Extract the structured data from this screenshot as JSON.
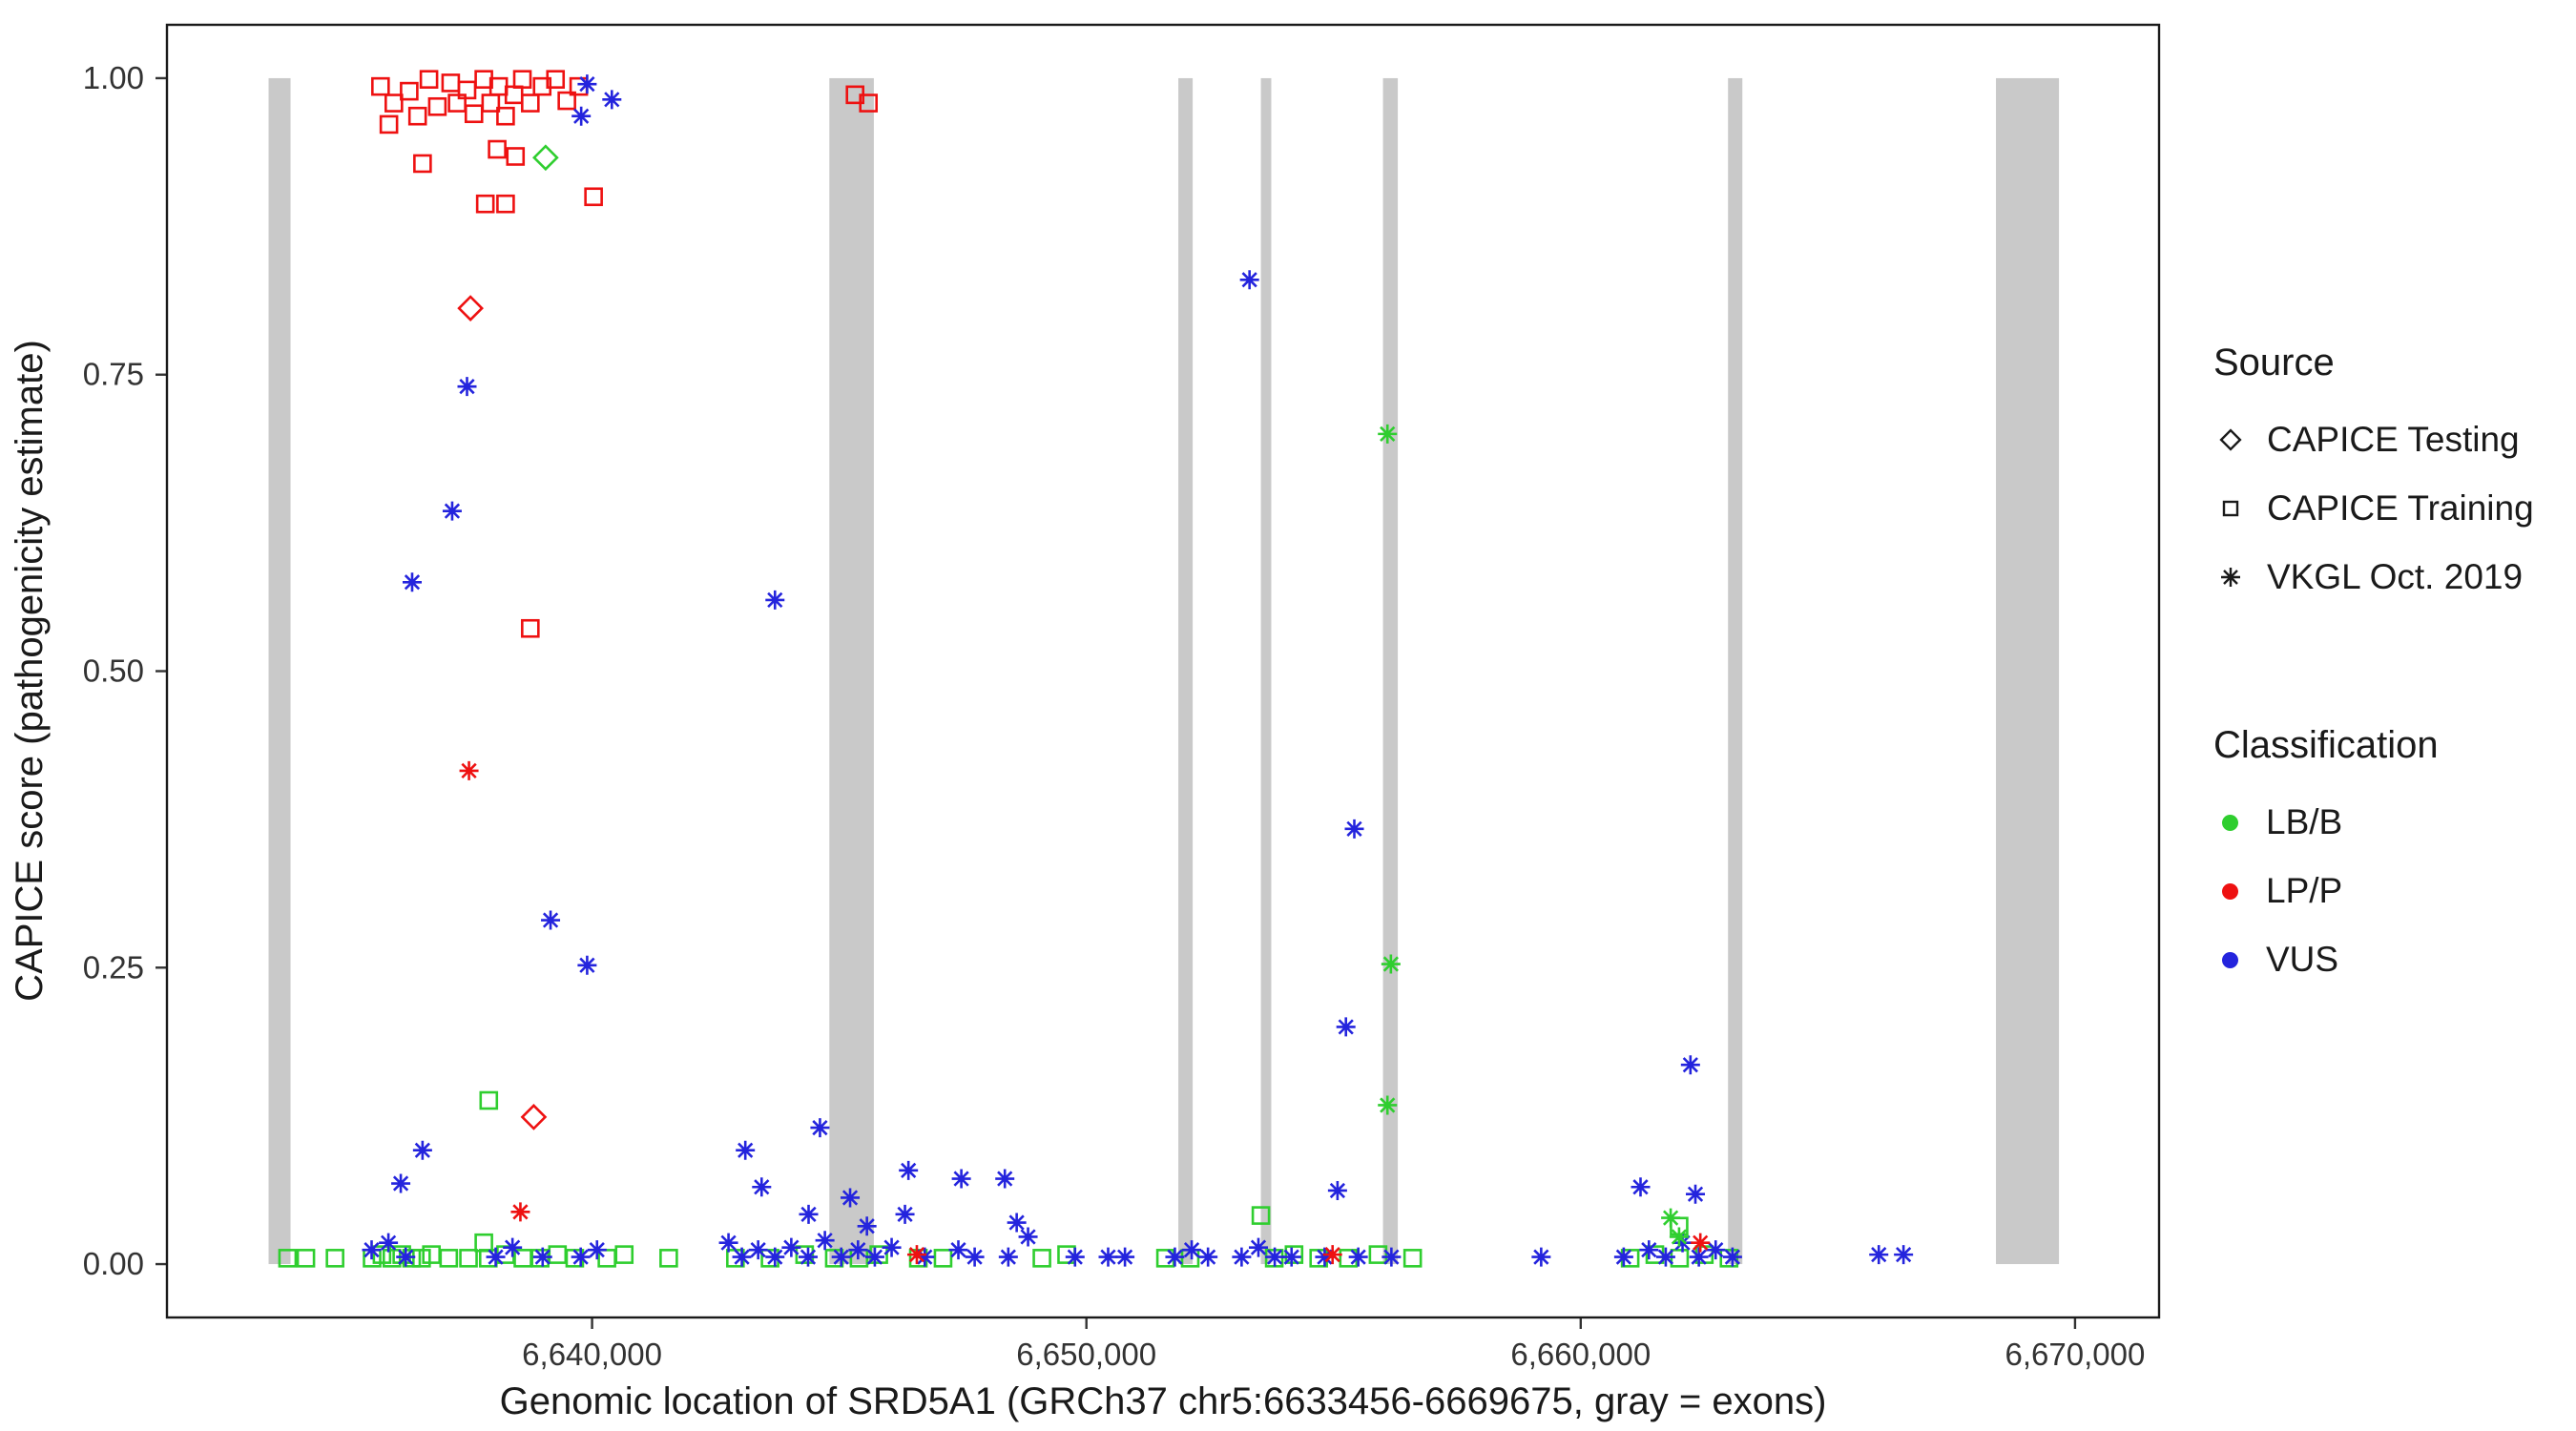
{
  "figure": {
    "background": "#ffffff"
  },
  "colors": {
    "LB/B": "#2fce2f",
    "LP/P": "#ee1111",
    "VUS": "#2424dd",
    "exon": "#c9c9c9",
    "text": "#1a1a1a"
  },
  "axes": {
    "x": {
      "title": "Genomic location of SRD5A1 (GRCh37 chr5:6633456-6669675, gray = exons)",
      "ticks": [
        6640000,
        6650000,
        6660000,
        6670000
      ],
      "tick_labels": [
        "6,640,000",
        "6,650,000",
        "6,660,000",
        "6,670,000"
      ]
    },
    "y": {
      "title": "CAPICE score (pathogenicity estimate)",
      "ticks": [
        0,
        0.25,
        0.5,
        0.75,
        1.0
      ],
      "tick_labels": [
        "0.00",
        "0.25",
        "0.50",
        "0.75",
        "1.00"
      ]
    }
  },
  "legend": {
    "source": {
      "title": "Source",
      "items": [
        {
          "label": "CAPICE Testing",
          "shape": "diamond"
        },
        {
          "label": "CAPICE Training",
          "shape": "square"
        },
        {
          "label": "VKGL Oct. 2019",
          "shape": "asterisk"
        }
      ]
    },
    "classification": {
      "title": "Classification",
      "items": [
        {
          "label": "LB/B",
          "color": "#2fce2f"
        },
        {
          "label": "LP/P",
          "color": "#ee1111"
        },
        {
          "label": "VUS",
          "color": "#2424dd"
        }
      ]
    }
  },
  "chart_data": {
    "type": "scatter",
    "title": "",
    "xlabel": "Genomic location of SRD5A1 (GRCh37 chr5:6633456-6669675, gray = exons)",
    "ylabel": "CAPICE score (pathogenicity estimate)",
    "x_domain": [
      6631400,
      6671700
    ],
    "y_domain": [
      -0.045,
      1.045
    ],
    "x_ticks": [
      6640000,
      6650000,
      6660000,
      6670000
    ],
    "y_ticks": [
      0,
      0.25,
      0.5,
      0.75,
      1.0
    ],
    "grid": false,
    "legend_position": "right",
    "exons": [
      [
        6633456,
        6633900
      ],
      [
        6644800,
        6645700
      ],
      [
        6651860,
        6652150
      ],
      [
        6653530,
        6653740
      ],
      [
        6656000,
        6656300
      ],
      [
        6662980,
        6663270
      ],
      [
        6668400,
        6669675
      ]
    ],
    "series": [
      {
        "name": "CAPICE Training / LP/P",
        "source": "CAPICE Training",
        "classification": "LP/P",
        "shape": "square",
        "points": [
          [
            6635720,
            0.993
          ],
          [
            6635990,
            0.979
          ],
          [
            6635890,
            0.961
          ],
          [
            6636300,
            0.989
          ],
          [
            6636470,
            0.968
          ],
          [
            6636700,
            0.999
          ],
          [
            6636870,
            0.976
          ],
          [
            6637140,
            0.996
          ],
          [
            6637270,
            0.979
          ],
          [
            6637470,
            0.99
          ],
          [
            6637610,
            0.97
          ],
          [
            6637810,
            0.999
          ],
          [
            6637950,
            0.979
          ],
          [
            6638110,
            0.993
          ],
          [
            6638250,
            0.968
          ],
          [
            6638420,
            0.986
          ],
          [
            6638590,
            0.999
          ],
          [
            6638750,
            0.979
          ],
          [
            6638990,
            0.993
          ],
          [
            6639260,
            0.999
          ],
          [
            6639490,
            0.981
          ],
          [
            6639730,
            0.993
          ],
          [
            6636570,
            0.928
          ],
          [
            6638080,
            0.94
          ],
          [
            6638450,
            0.934
          ],
          [
            6637840,
            0.894
          ],
          [
            6638250,
            0.894
          ],
          [
            6640030,
            0.9
          ],
          [
            6638750,
            0.536
          ],
          [
            6645320,
            0.986
          ],
          [
            6645590,
            0.979
          ]
        ]
      },
      {
        "name": "CAPICE Training / LB/B",
        "source": "CAPICE Training",
        "classification": "LB/B",
        "shape": "square",
        "points": [
          [
            6633840,
            0.005
          ],
          [
            6634210,
            0.005
          ],
          [
            6634800,
            0.005
          ],
          [
            6635550,
            0.005
          ],
          [
            6635750,
            0.008
          ],
          [
            6635950,
            0.005
          ],
          [
            6636150,
            0.008
          ],
          [
            6636350,
            0.005
          ],
          [
            6636550,
            0.005
          ],
          [
            6636750,
            0.008
          ],
          [
            6637100,
            0.005
          ],
          [
            6637500,
            0.005
          ],
          [
            6637810,
            0.018
          ],
          [
            6637910,
            0.138
          ],
          [
            6637900,
            0.005
          ],
          [
            6638250,
            0.008
          ],
          [
            6638600,
            0.005
          ],
          [
            6638950,
            0.005
          ],
          [
            6639300,
            0.008
          ],
          [
            6639650,
            0.005
          ],
          [
            6640300,
            0.005
          ],
          [
            6640650,
            0.008
          ],
          [
            6641550,
            0.005
          ],
          [
            6642900,
            0.005
          ],
          [
            6643600,
            0.005
          ],
          [
            6644300,
            0.008
          ],
          [
            6644900,
            0.005
          ],
          [
            6645400,
            0.005
          ],
          [
            6645800,
            0.008
          ],
          [
            6646600,
            0.005
          ],
          [
            6647100,
            0.005
          ],
          [
            6649100,
            0.005
          ],
          [
            6649600,
            0.008
          ],
          [
            6651600,
            0.005
          ],
          [
            6652100,
            0.005
          ],
          [
            6653530,
            0.041
          ],
          [
            6653800,
            0.005
          ],
          [
            6654200,
            0.008
          ],
          [
            6654700,
            0.005
          ],
          [
            6655300,
            0.005
          ],
          [
            6655900,
            0.008
          ],
          [
            6656600,
            0.005
          ],
          [
            6661000,
            0.005
          ],
          [
            6661500,
            0.008
          ],
          [
            6661990,
            0.032
          ],
          [
            6662000,
            0.005
          ],
          [
            6662500,
            0.008
          ],
          [
            6663000,
            0.005
          ]
        ]
      },
      {
        "name": "CAPICE Testing / LP/P",
        "source": "CAPICE Testing",
        "classification": "LP/P",
        "shape": "diamond",
        "points": [
          [
            6637540,
            0.806
          ],
          [
            6638820,
            0.124
          ]
        ]
      },
      {
        "name": "CAPICE Testing / LB/B",
        "source": "CAPICE Testing",
        "classification": "LB/B",
        "shape": "diamond",
        "points": [
          [
            6639060,
            0.933
          ]
        ]
      },
      {
        "name": "VKGL Oct. 2019 / VUS",
        "source": "VKGL Oct. 2019",
        "classification": "VUS",
        "shape": "asterisk",
        "points": [
          [
            6639900,
            0.995
          ],
          [
            6639780,
            0.968
          ],
          [
            6640400,
            0.982
          ],
          [
            6637470,
            0.74
          ],
          [
            6637170,
            0.635
          ],
          [
            6636360,
            0.575
          ],
          [
            6643700,
            0.56
          ],
          [
            6639160,
            0.29
          ],
          [
            6639900,
            0.252
          ],
          [
            6653300,
            0.83
          ],
          [
            6655420,
            0.367
          ],
          [
            6655250,
            0.2
          ],
          [
            6655080,
            0.062
          ],
          [
            6662220,
            0.168
          ],
          [
            6636570,
            0.096
          ],
          [
            6636130,
            0.068
          ],
          [
            6643100,
            0.096
          ],
          [
            6643430,
            0.065
          ],
          [
            6644610,
            0.115
          ],
          [
            6644380,
            0.042
          ],
          [
            6645220,
            0.056
          ],
          [
            6645560,
            0.032
          ],
          [
            6646400,
            0.079
          ],
          [
            6646330,
            0.042
          ],
          [
            6647470,
            0.072
          ],
          [
            6648350,
            0.072
          ],
          [
            6648590,
            0.035
          ],
          [
            6648820,
            0.023
          ],
          [
            6635540,
            0.012
          ],
          [
            6635880,
            0.018
          ],
          [
            6636230,
            0.006
          ],
          [
            6638050,
            0.006
          ],
          [
            6638390,
            0.014
          ],
          [
            6639000,
            0.006
          ],
          [
            6639770,
            0.006
          ],
          [
            6640100,
            0.012
          ],
          [
            6642760,
            0.018
          ],
          [
            6643030,
            0.006
          ],
          [
            6643360,
            0.012
          ],
          [
            6643700,
            0.006
          ],
          [
            6644030,
            0.014
          ],
          [
            6644370,
            0.006
          ],
          [
            6644710,
            0.02
          ],
          [
            6645040,
            0.006
          ],
          [
            6645380,
            0.012
          ],
          [
            6645720,
            0.006
          ],
          [
            6646060,
            0.014
          ],
          [
            6646730,
            0.006
          ],
          [
            6647410,
            0.012
          ],
          [
            6647740,
            0.006
          ],
          [
            6648420,
            0.006
          ],
          [
            6649770,
            0.006
          ],
          [
            6650440,
            0.006
          ],
          [
            6650780,
            0.006
          ],
          [
            6651790,
            0.006
          ],
          [
            6652130,
            0.012
          ],
          [
            6652460,
            0.006
          ],
          [
            6653140,
            0.006
          ],
          [
            6653480,
            0.014
          ],
          [
            6653810,
            0.006
          ],
          [
            6654150,
            0.006
          ],
          [
            6654820,
            0.006
          ],
          [
            6655500,
            0.006
          ],
          [
            6656170,
            0.006
          ],
          [
            6659200,
            0.006
          ],
          [
            6660870,
            0.006
          ],
          [
            6661210,
            0.065
          ],
          [
            6661380,
            0.012
          ],
          [
            6661720,
            0.006
          ],
          [
            6662060,
            0.018
          ],
          [
            6662320,
            0.059
          ],
          [
            6662390,
            0.006
          ],
          [
            6662730,
            0.012
          ],
          [
            6663070,
            0.006
          ],
          [
            6666030,
            0.008
          ],
          [
            6666530,
            0.008
          ]
        ]
      },
      {
        "name": "VKGL Oct. 2019 / LP/P",
        "source": "VKGL Oct. 2019",
        "classification": "LP/P",
        "shape": "asterisk",
        "points": [
          [
            6637510,
            0.416
          ],
          [
            6638550,
            0.044
          ],
          [
            6646570,
            0.008
          ],
          [
            6654980,
            0.008
          ],
          [
            6662420,
            0.018
          ]
        ]
      },
      {
        "name": "VKGL Oct. 2019 / LB/B",
        "source": "VKGL Oct. 2019",
        "classification": "LB/B",
        "shape": "asterisk",
        "points": [
          [
            6656090,
            0.7
          ],
          [
            6656160,
            0.253
          ],
          [
            6656090,
            0.134
          ],
          [
            6661820,
            0.039
          ],
          [
            6661990,
            0.023
          ]
        ]
      }
    ]
  }
}
